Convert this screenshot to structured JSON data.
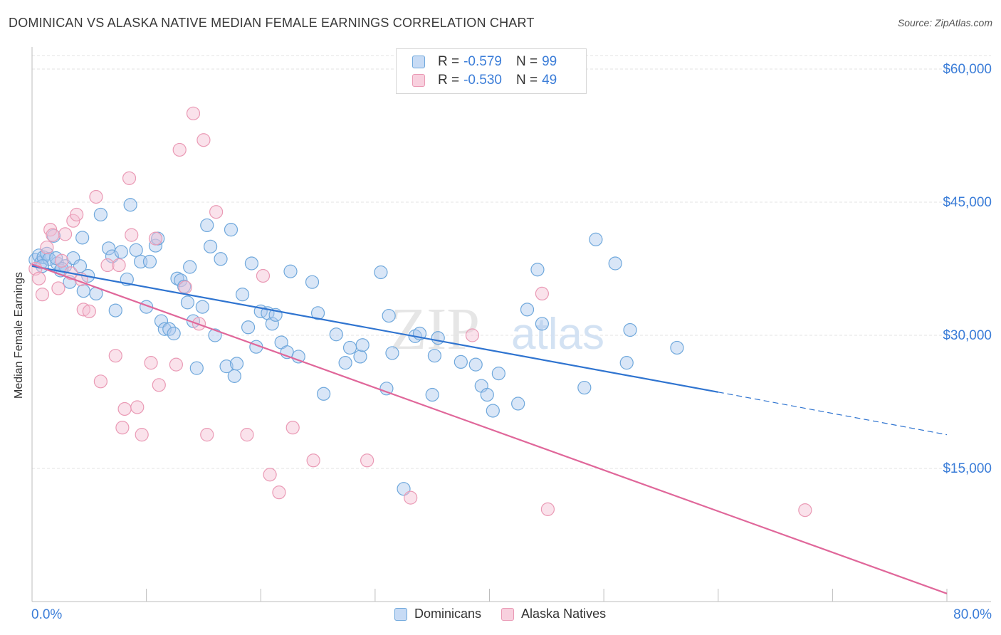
{
  "header": {
    "title": "DOMINICAN VS ALASKA NATIVE MEDIAN FEMALE EARNINGS CORRELATION CHART",
    "source": "Source: ZipAtlas.com"
  },
  "watermark": {
    "zip": "ZIP",
    "atlas": "atlas"
  },
  "legend": {
    "items": [
      {
        "r_label": "R =",
        "r_value": "-0.579",
        "n_label": "N =",
        "n_value": "99",
        "color": "#6fa8dc"
      },
      {
        "r_label": "R =",
        "r_value": "-0.530",
        "n_label": "N =",
        "n_value": "49",
        "color": "#ea9ab5"
      }
    ]
  },
  "chart_data": {
    "type": "scatter",
    "title": "DOMINICAN VS ALASKA NATIVE MEDIAN FEMALE EARNINGS CORRELATION CHART",
    "ylabel": "Median Female Earnings",
    "xlabel": "",
    "xlim": [
      0,
      80
    ],
    "ylim": [
      0,
      63000
    ],
    "x_tick_labels": [
      "0.0%",
      "80.0%"
    ],
    "y_ticks": [
      15000,
      30000,
      45000,
      60000
    ],
    "y_tick_labels": [
      "$15,000",
      "$30,000",
      "$45,000",
      "$60,000"
    ],
    "grid": true,
    "legend_position": "top-center",
    "series": [
      {
        "name": "Dominicans",
        "color": "#6fa8dc",
        "line_color": "#2f74d0",
        "trend": {
          "x0": 0,
          "y0": 37800,
          "x1": 60,
          "y1": 23600,
          "dashed_to_x": 80,
          "dashed_to_y": 18800
        },
        "points": [
          [
            0.3,
            38500
          ],
          [
            0.6,
            39000
          ],
          [
            0.8,
            38200
          ],
          [
            1.0,
            38800
          ],
          [
            1.3,
            39200
          ],
          [
            1.5,
            38600
          ],
          [
            1.9,
            41200
          ],
          [
            2.2,
            38100
          ],
          [
            2.5,
            37300
          ],
          [
            2.9,
            37800
          ],
          [
            3.3,
            36000
          ],
          [
            3.6,
            38700
          ],
          [
            4.2,
            37800
          ],
          [
            4.5,
            35000
          ],
          [
            4.9,
            36700
          ],
          [
            2.6,
            37500
          ],
          [
            4.4,
            41000
          ],
          [
            6.0,
            43600
          ],
          [
            5.6,
            34700
          ],
          [
            6.7,
            39800
          ],
          [
            7.0,
            38900
          ],
          [
            7.3,
            32800
          ],
          [
            7.8,
            39400
          ],
          [
            8.3,
            36300
          ],
          [
            8.6,
            44700
          ],
          [
            9.1,
            39600
          ],
          [
            9.5,
            38300
          ],
          [
            10.0,
            33200
          ],
          [
            10.3,
            38300
          ],
          [
            10.8,
            40100
          ],
          [
            11.0,
            40900
          ],
          [
            11.3,
            31600
          ],
          [
            11.6,
            30700
          ],
          [
            12.0,
            30700
          ],
          [
            12.4,
            30200
          ],
          [
            12.7,
            36400
          ],
          [
            13.0,
            36200
          ],
          [
            13.3,
            35500
          ],
          [
            13.6,
            33700
          ],
          [
            13.8,
            37700
          ],
          [
            14.1,
            31600
          ],
          [
            14.4,
            26300
          ],
          [
            14.9,
            33200
          ],
          [
            15.3,
            42400
          ],
          [
            15.6,
            40000
          ],
          [
            16.0,
            30000
          ],
          [
            16.5,
            38600
          ],
          [
            17.0,
            26500
          ],
          [
            17.4,
            41900
          ],
          [
            17.7,
            25400
          ],
          [
            17.9,
            26800
          ],
          [
            18.4,
            34600
          ],
          [
            18.9,
            30900
          ],
          [
            19.2,
            38100
          ],
          [
            19.6,
            28700
          ],
          [
            20.0,
            32700
          ],
          [
            20.6,
            32500
          ],
          [
            21.0,
            31300
          ],
          [
            21.3,
            32300
          ],
          [
            21.8,
            29200
          ],
          [
            22.3,
            28100
          ],
          [
            22.6,
            37200
          ],
          [
            23.3,
            27600
          ],
          [
            24.5,
            36000
          ],
          [
            25.0,
            32500
          ],
          [
            25.5,
            23400
          ],
          [
            26.6,
            30100
          ],
          [
            27.4,
            26900
          ],
          [
            27.8,
            28600
          ],
          [
            28.7,
            27600
          ],
          [
            28.9,
            28900
          ],
          [
            30.5,
            37100
          ],
          [
            31.0,
            24000
          ],
          [
            31.2,
            32200
          ],
          [
            31.5,
            28000
          ],
          [
            32.5,
            12700
          ],
          [
            33.5,
            29900
          ],
          [
            33.9,
            30200
          ],
          [
            35.0,
            23300
          ],
          [
            35.2,
            27700
          ],
          [
            35.5,
            29700
          ],
          [
            37.5,
            27000
          ],
          [
            38.8,
            26700
          ],
          [
            39.3,
            24300
          ],
          [
            39.8,
            23300
          ],
          [
            40.3,
            21500
          ],
          [
            40.8,
            25700
          ],
          [
            42.5,
            22300
          ],
          [
            43.3,
            32900
          ],
          [
            44.2,
            37400
          ],
          [
            44.6,
            31300
          ],
          [
            48.3,
            24100
          ],
          [
            49.3,
            40800
          ],
          [
            51.0,
            38100
          ],
          [
            52.0,
            26900
          ],
          [
            52.3,
            30600
          ],
          [
            56.4,
            28600
          ],
          [
            0.9,
            37800
          ],
          [
            2.1,
            38700
          ]
        ]
      },
      {
        "name": "Alaska Natives",
        "color": "#ea9ab5",
        "line_color": "#e0679a",
        "trend": {
          "x0": 0,
          "y0": 38000,
          "x1": 80,
          "y1": 900
        },
        "points": [
          [
            0.3,
            37500
          ],
          [
            0.6,
            36400
          ],
          [
            0.9,
            34600
          ],
          [
            1.3,
            39900
          ],
          [
            1.6,
            41900
          ],
          [
            1.8,
            41300
          ],
          [
            2.3,
            35300
          ],
          [
            2.6,
            38400
          ],
          [
            2.9,
            41400
          ],
          [
            3.4,
            37000
          ],
          [
            3.6,
            42900
          ],
          [
            3.9,
            43600
          ],
          [
            4.3,
            36300
          ],
          [
            4.5,
            32900
          ],
          [
            5.0,
            32700
          ],
          [
            5.6,
            45600
          ],
          [
            6.0,
            24800
          ],
          [
            6.6,
            37900
          ],
          [
            7.3,
            27700
          ],
          [
            7.6,
            37900
          ],
          [
            7.9,
            19600
          ],
          [
            8.1,
            21700
          ],
          [
            8.5,
            47700
          ],
          [
            8.7,
            41300
          ],
          [
            9.2,
            21900
          ],
          [
            9.6,
            18800
          ],
          [
            10.4,
            26900
          ],
          [
            10.8,
            40900
          ],
          [
            11.1,
            24400
          ],
          [
            12.6,
            26700
          ],
          [
            12.9,
            50900
          ],
          [
            13.4,
            35400
          ],
          [
            14.1,
            55000
          ],
          [
            14.6,
            31300
          ],
          [
            15.0,
            52000
          ],
          [
            15.3,
            18800
          ],
          [
            16.1,
            43900
          ],
          [
            18.8,
            18800
          ],
          [
            20.2,
            36700
          ],
          [
            20.8,
            14300
          ],
          [
            21.6,
            12300
          ],
          [
            22.8,
            19600
          ],
          [
            24.6,
            15900
          ],
          [
            29.3,
            15900
          ],
          [
            33.1,
            11700
          ],
          [
            38.5,
            30000
          ],
          [
            44.6,
            34700
          ],
          [
            45.1,
            10400
          ],
          [
            67.6,
            10300
          ]
        ]
      }
    ]
  }
}
